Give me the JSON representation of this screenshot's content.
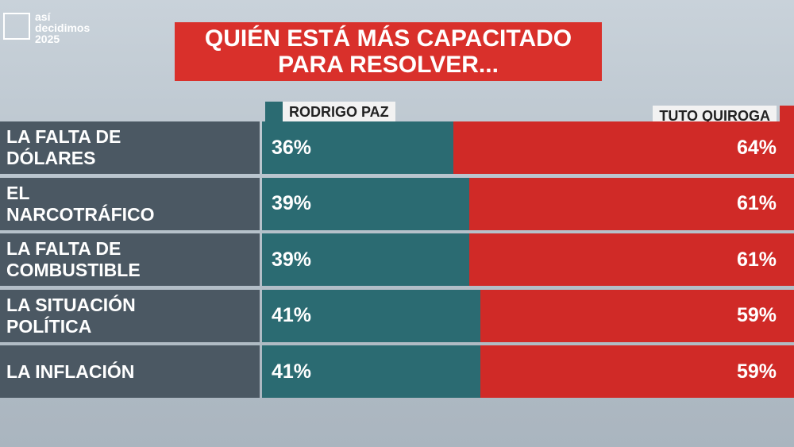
{
  "logo": [
    "así",
    "decidimos",
    "2025"
  ],
  "chart_data": {
    "type": "bar",
    "orientation": "horizontal",
    "stacked": true,
    "title": [
      "QUIÉN ESTÁ MÁS CAPACITADO",
      "PARA RESOLVER..."
    ],
    "categories": [
      "LA FALTA DE DÓLARES",
      "EL NARCOTRÁFICO",
      "LA FALTA DE COMBUSTIBLE",
      "LA SITUACIÓN POLÍTICA",
      "LA INFLACIÓN"
    ],
    "xlim": [
      0,
      100
    ],
    "series": [
      {
        "name": "RODRIGO PAZ",
        "color": "#2b6b72",
        "values": [
          36,
          39,
          39,
          41,
          41
        ],
        "value_labels": [
          "36%",
          "39%",
          "39%",
          "41%",
          "41%"
        ]
      },
      {
        "name": "TUTO QUIROGA",
        "color": "#d02a27",
        "values": [
          64,
          61,
          61,
          59,
          59
        ],
        "value_labels": [
          "64%",
          "61%",
          "61%",
          "59%",
          "59%"
        ]
      }
    ]
  }
}
